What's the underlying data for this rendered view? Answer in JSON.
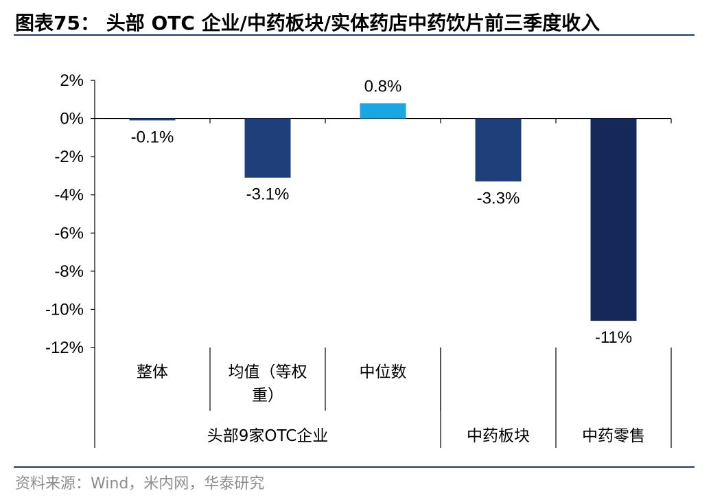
{
  "title": "图表75： 头部 OTC 企业/中药板块/实体药店中药饮片前三季度收入",
  "source": "资料来源：Wind，米内网，华泰研究",
  "chart_data": {
    "type": "bar",
    "title": "图表75： 头部 OTC 企业/中药板块/实体药店中药饮片前三季度收入",
    "xlabel": "",
    "ylabel": "",
    "ylim": [
      -12,
      2
    ],
    "yticks": [
      2,
      0,
      -2,
      -4,
      -6,
      -8,
      -10,
      -12
    ],
    "ytick_labels": [
      "2%",
      "0%",
      "-2%",
      "-4%",
      "-6%",
      "-8%",
      "-10%",
      "-12%"
    ],
    "categories": [
      "整体",
      "均值（等权重）",
      "中位数",
      "中药板块",
      "中药零售"
    ],
    "category_lines": [
      [
        "整体"
      ],
      [
        "均值（等权",
        "重）"
      ],
      [
        "中位数"
      ],
      [
        ""
      ],
      [
        ""
      ]
    ],
    "groups": [
      {
        "label": "头部9家OTC企业",
        "span": [
          0,
          2
        ]
      },
      {
        "label": "中药板块",
        "span": [
          3,
          3
        ]
      },
      {
        "label": "中药零售",
        "span": [
          4,
          4
        ]
      }
    ],
    "values": [
      -0.1,
      -3.1,
      0.8,
      -3.3,
      -10.6
    ],
    "data_labels": [
      "-0.1%",
      "-3.1%",
      "0.8%",
      "-3.3%",
      "-11%"
    ],
    "colors": [
      "#1f3f7a",
      "#1f3f7a",
      "#19a7e4",
      "#1f3f7a",
      "#14285a"
    ],
    "grid": false
  }
}
